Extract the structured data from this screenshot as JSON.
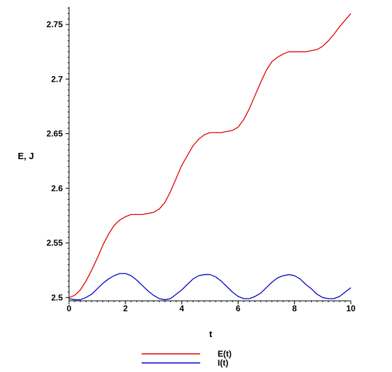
{
  "chart_data": {
    "type": "line",
    "title": "",
    "xlabel": "t",
    "ylabel": "E, J",
    "xlim": [
      0,
      10
    ],
    "ylim": [
      2.497,
      2.766
    ],
    "x_ticks": [
      0,
      2,
      4,
      6,
      8,
      10
    ],
    "x_tick_labels": [
      "0",
      "2",
      "4",
      "6",
      "8",
      "10"
    ],
    "y_ticks": [
      2.5,
      2.55,
      2.6,
      2.65,
      2.7,
      2.75
    ],
    "y_tick_labels": [
      "2.5",
      "2.55",
      "2.6",
      "2.65",
      "2.7",
      "2.75"
    ],
    "grid": false,
    "legend_position": "bottom",
    "series": [
      {
        "name": "E(t)",
        "color": "#e00000",
        "x": [
          0,
          0.2,
          0.4,
          0.6,
          0.8,
          1.0,
          1.2,
          1.4,
          1.6,
          1.8,
          2.0,
          2.2,
          2.4,
          2.6,
          2.8,
          3.0,
          3.2,
          3.4,
          3.6,
          3.8,
          4.0,
          4.2,
          4.4,
          4.6,
          4.8,
          5.0,
          5.2,
          5.4,
          5.6,
          5.8,
          6.0,
          6.2,
          6.4,
          6.6,
          6.8,
          7.0,
          7.2,
          7.4,
          7.6,
          7.8,
          8.0,
          8.2,
          8.4,
          8.6,
          8.8,
          9.0,
          9.2,
          9.4,
          9.6,
          9.8,
          10.0
        ],
        "y": [
          2.5,
          2.502,
          2.507,
          2.515,
          2.525,
          2.536,
          2.548,
          2.558,
          2.566,
          2.571,
          2.574,
          2.576,
          2.576,
          2.576,
          2.577,
          2.578,
          2.581,
          2.587,
          2.597,
          2.609,
          2.621,
          2.63,
          2.639,
          2.645,
          2.649,
          2.651,
          2.651,
          2.651,
          2.652,
          2.653,
          2.656,
          2.663,
          2.673,
          2.685,
          2.697,
          2.708,
          2.716,
          2.72,
          2.723,
          2.725,
          2.725,
          2.725,
          2.725,
          2.726,
          2.727,
          2.73,
          2.735,
          2.741,
          2.748,
          2.754,
          2.76
        ]
      },
      {
        "name": "I(t)",
        "color": "#0000cc",
        "x": [
          0,
          0.2,
          0.4,
          0.6,
          0.8,
          1.0,
          1.2,
          1.4,
          1.6,
          1.8,
          2.0,
          2.2,
          2.4,
          2.6,
          2.8,
          3.0,
          3.2,
          3.4,
          3.6,
          3.8,
          4.0,
          4.2,
          4.4,
          4.6,
          4.8,
          5.0,
          5.2,
          5.4,
          5.6,
          5.8,
          6.0,
          6.2,
          6.4,
          6.6,
          6.8,
          7.0,
          7.2,
          7.4,
          7.6,
          7.8,
          8.0,
          8.2,
          8.4,
          8.6,
          8.8,
          9.0,
          9.2,
          9.4,
          9.6,
          9.8,
          10.0
        ],
        "y": [
          2.499,
          2.498,
          2.498,
          2.5,
          2.503,
          2.508,
          2.513,
          2.517,
          2.52,
          2.522,
          2.522,
          2.52,
          2.516,
          2.511,
          2.506,
          2.502,
          2.499,
          2.498,
          2.499,
          2.503,
          2.507,
          2.512,
          2.517,
          2.52,
          2.521,
          2.521,
          2.519,
          2.515,
          2.51,
          2.505,
          2.501,
          2.499,
          2.499,
          2.501,
          2.504,
          2.509,
          2.514,
          2.518,
          2.52,
          2.521,
          2.52,
          2.517,
          2.512,
          2.508,
          2.503,
          2.5,
          2.499,
          2.499,
          2.501,
          2.505,
          2.509
        ]
      }
    ]
  }
}
